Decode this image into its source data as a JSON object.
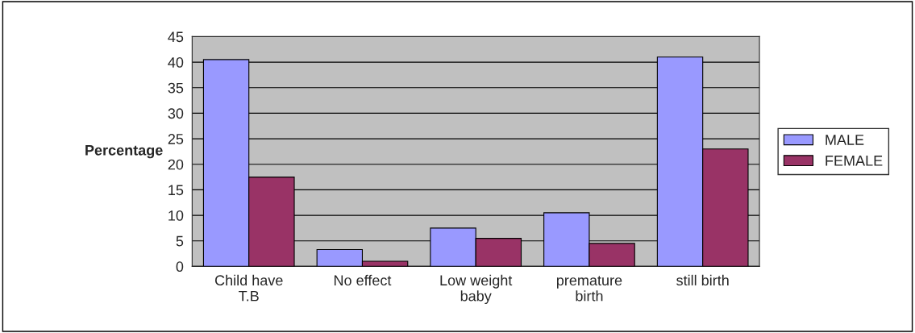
{
  "chart_data": {
    "type": "bar",
    "ylabel": "Percentage",
    "categories": [
      "Child have\nT.B",
      "No effect",
      "Low weight\nbaby",
      "premature\nbirth",
      "still birth"
    ],
    "series": [
      {
        "name": "MALE",
        "color": "#9999ff",
        "values": [
          40.5,
          3.3,
          7.5,
          10.5,
          41
        ]
      },
      {
        "name": "FEMALE",
        "color": "#993366",
        "values": [
          17.5,
          1,
          5.5,
          4.5,
          23
        ]
      }
    ],
    "ylim": [
      0,
      45
    ],
    "yticks": [
      0,
      5,
      10,
      15,
      20,
      25,
      30,
      35,
      40,
      45
    ],
    "grid": "y",
    "legend": "right"
  }
}
